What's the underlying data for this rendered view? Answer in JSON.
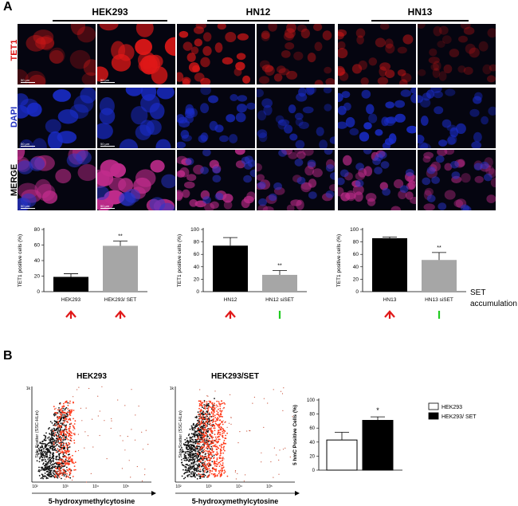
{
  "panel_a": {
    "letter": "A",
    "groups": [
      "HEK293",
      "HN12",
      "HN13"
    ],
    "row_labels": {
      "tet1": "TET1",
      "dapi": "DAPI",
      "merge": "MERGE"
    },
    "scale_label": "50 µm",
    "colors": {
      "tet1": "#e01818",
      "dapi": "#1a2cc8",
      "merge": "#c02c8c"
    }
  },
  "bar_charts": [
    {
      "type": "bar",
      "ylabel": "TET1 positive cells (%)",
      "ylim": [
        0,
        80
      ],
      "yticks": [
        0,
        20,
        40,
        60,
        80
      ],
      "categories": [
        "HEK293",
        "HEK293/ SET"
      ],
      "values": [
        19,
        59
      ],
      "errors": [
        4,
        6
      ],
      "bar_colors": [
        "#000000",
        "#a6a6a6"
      ],
      "significance": "**",
      "arrows": [
        "up-red",
        "up-red"
      ]
    },
    {
      "type": "bar",
      "ylabel": "TET1 positive cells (%)",
      "ylim": [
        0,
        100
      ],
      "yticks": [
        0,
        20,
        40,
        60,
        80,
        100
      ],
      "categories": [
        "HN12",
        "HN12 siSET"
      ],
      "values": [
        74,
        27
      ],
      "errors": [
        13,
        7
      ],
      "bar_colors": [
        "#000000",
        "#a6a6a6"
      ],
      "significance": "**",
      "arrows": [
        "up-red",
        "down-green"
      ]
    },
    {
      "type": "bar",
      "ylabel": "TET1 positive cells (%)",
      "ylim": [
        0,
        100
      ],
      "yticks": [
        0,
        20,
        40,
        60,
        80,
        100
      ],
      "categories": [
        "HN13",
        "HN13 siSET"
      ],
      "values": [
        86,
        51
      ],
      "errors": [
        2,
        12
      ],
      "bar_colors": [
        "#000000",
        "#a6a6a6"
      ],
      "significance": "**",
      "arrows": [
        "up-red",
        "down-green"
      ]
    }
  ],
  "arrow_legend": {
    "line1": "SET",
    "line2": "accumulation"
  },
  "panel_b": {
    "letter": "B",
    "scatter_titles": [
      "HEK293",
      "HEK293/SET"
    ],
    "scatter_xlabel": "5-hydroxymethylcytosine",
    "scatter_ylabel": "Side Scatter (SSC-HLin)",
    "scatter_ytick_top": "1k",
    "scatter_xticks": [
      "10²",
      "10³",
      "10⁴",
      "10⁵"
    ]
  },
  "chart_data": {
    "type": "bar",
    "ylabel": "5 hmC Positive Cells (%)",
    "ylim": [
      0,
      100
    ],
    "yticks": [
      0,
      20,
      40,
      60,
      80,
      100
    ],
    "series": [
      {
        "name": "HEK293",
        "values": [
          43
        ],
        "error": [
          11
        ],
        "color": "#ffffff"
      },
      {
        "name": "HEK293/ SET",
        "values": [
          71
        ],
        "error": [
          5
        ],
        "color": "#000000"
      }
    ],
    "significance": "*",
    "legend": "right"
  }
}
